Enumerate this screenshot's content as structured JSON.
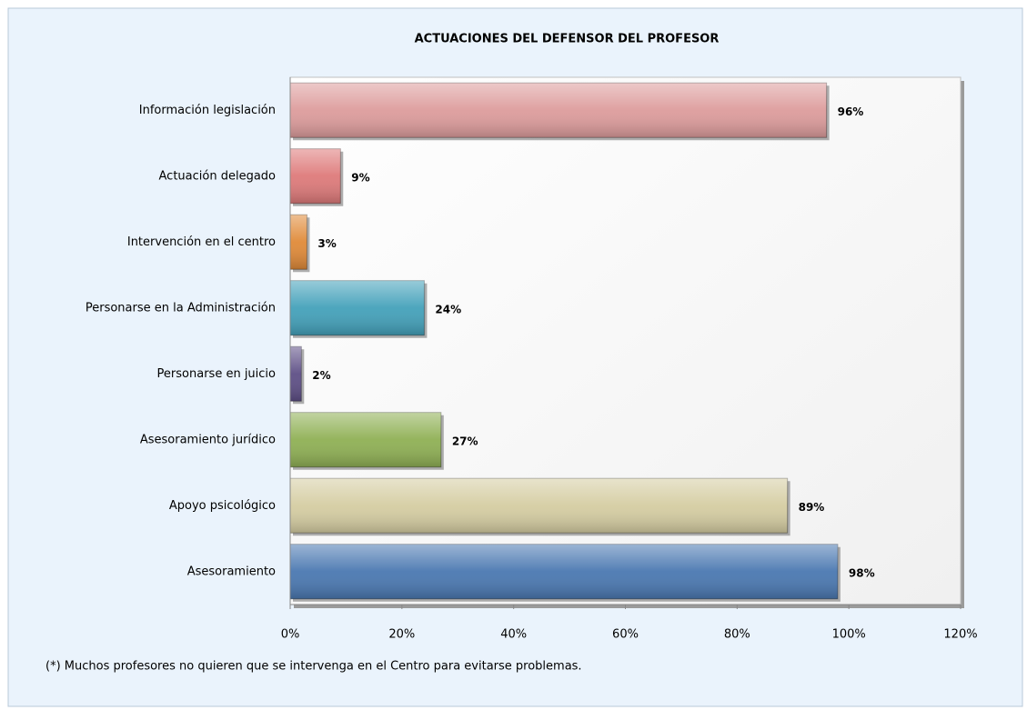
{
  "chart_data": {
    "type": "hbar",
    "title": "ACTUACIONES DEL DEFENSOR DEL PROFESOR",
    "categories": [
      "Información legislación",
      "Actuación delegado",
      "Intervención en el centro",
      "Personarse en la Administración",
      "Personarse en juicio",
      "Asesoramiento jurídico",
      "Apoyo psicológico",
      "Asesoramiento"
    ],
    "values": [
      96,
      9,
      3,
      24,
      2,
      27,
      89,
      98
    ],
    "value_labels": [
      "96%",
      "9%",
      "3%",
      "24%",
      "2%",
      "27%",
      "89%",
      "98%"
    ],
    "colors": [
      "#dd9c9c",
      "#de7a7a",
      "#e08a38",
      "#43a1ba",
      "#5e4f86",
      "#8fb054",
      "#d5cda2",
      "#4a78b1"
    ],
    "xlim": [
      0,
      120
    ],
    "xticks": [
      {
        "value": 0,
        "label": "0%"
      },
      {
        "value": 20,
        "label": "20%"
      },
      {
        "value": 40,
        "label": "40%"
      },
      {
        "value": 60,
        "label": "60%"
      },
      {
        "value": 80,
        "label": "80%"
      },
      {
        "value": 100,
        "label": "100%"
      },
      {
        "value": 120,
        "label": "120%"
      }
    ],
    "annotation": "(*) Muchos profesores no quieren que se intervenga en el Centro para evitarse problemas."
  }
}
